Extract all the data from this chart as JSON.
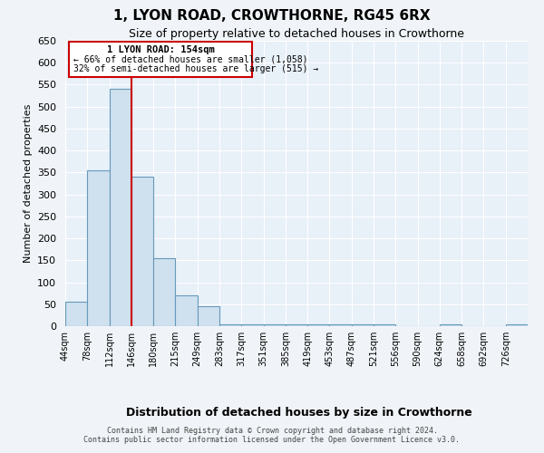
{
  "title": "1, LYON ROAD, CROWTHORNE, RG45 6RX",
  "subtitle": "Size of property relative to detached houses in Crowthorne",
  "xlabel": "Distribution of detached houses by size in Crowthorne",
  "ylabel": "Number of detached properties",
  "bar_color": "#cfe0ee",
  "bar_edge_color": "#6699bb",
  "background_color": "#e8f0f8",
  "grid_color": "#ffffff",
  "annotation_line_color": "#cc0000",
  "annotation_box_color": "#cc0000",
  "bin_labels": [
    "44sqm",
    "78sqm",
    "112sqm",
    "146sqm",
    "180sqm",
    "215sqm",
    "249sqm",
    "283sqm",
    "317sqm",
    "351sqm",
    "385sqm",
    "419sqm",
    "453sqm",
    "487sqm",
    "521sqm",
    "556sqm",
    "590sqm",
    "624sqm",
    "658sqm",
    "692sqm",
    "726sqm"
  ],
  "bar_heights": [
    55,
    355,
    540,
    340,
    155,
    70,
    45,
    5,
    5,
    5,
    5,
    5,
    5,
    5,
    5,
    0,
    0,
    5,
    0,
    0,
    5
  ],
  "ylim": [
    0,
    650
  ],
  "yticks": [
    0,
    50,
    100,
    150,
    200,
    250,
    300,
    350,
    400,
    450,
    500,
    550,
    600,
    650
  ],
  "red_line_x": 3,
  "annotation_text_line1": "1 LYON ROAD: 154sqm",
  "annotation_text_line2": "← 66% of detached houses are smaller (1,058)",
  "annotation_text_line3": "32% of semi-detached houses are larger (515) →",
  "footer_line1": "Contains HM Land Registry data © Crown copyright and database right 2024.",
  "footer_line2": "Contains public sector information licensed under the Open Government Licence v3.0.",
  "fig_bg": "#f0f4f8"
}
